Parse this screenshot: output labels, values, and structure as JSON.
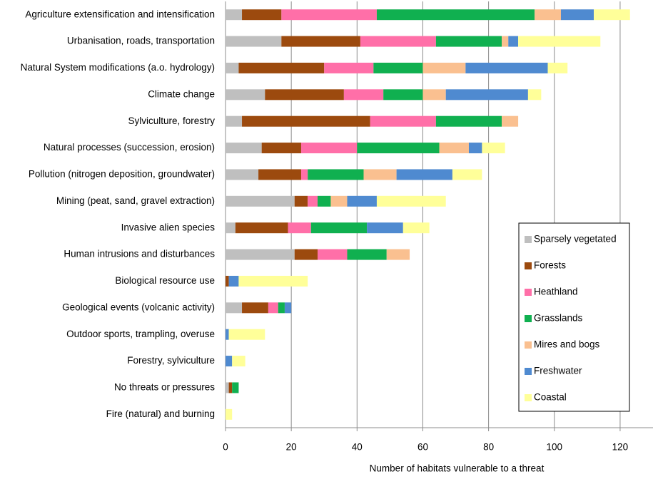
{
  "chart_data": {
    "type": "stacked-bar-horizontal",
    "x_label": "Number of habitats vulnerable to a threat",
    "categories": [
      "Agriculture extensification and intensification",
      "Urbanisation, roads, transportation",
      "Natural System modifications (a.o. hydrology)",
      "Climate change",
      "Sylviculture, forestry",
      "Natural processes (succession, erosion)",
      "Pollution (nitrogen deposition, groundwater)",
      "Mining (peat, sand, gravel extraction)",
      "Invasive alien species",
      "Human intrusions and disturbances",
      "Biological resource use",
      "Geological events (volcanic activity)",
      "Outdoor sports, trampling, overuse",
      "Forestry, sylviculture",
      "No threats or pressures",
      "Fire (natural) and burning"
    ],
    "series": [
      {
        "name": "Sparsely vegetated",
        "color": "#bfbfbf",
        "values": [
          5,
          17,
          4,
          12,
          5,
          11,
          10,
          21,
          3,
          21,
          0,
          5,
          0,
          0,
          1,
          0
        ]
      },
      {
        "name": "Forests",
        "color": "#9c4a0e",
        "values": [
          12,
          24,
          26,
          24,
          39,
          12,
          13,
          4,
          16,
          7,
          1,
          8,
          0,
          0,
          1,
          0
        ]
      },
      {
        "name": "Heathland",
        "color": "#ff6fa8",
        "values": [
          29,
          23,
          15,
          12,
          20,
          17,
          2,
          3,
          7,
          9,
          0,
          3,
          0,
          0,
          0,
          0
        ]
      },
      {
        "name": "Grasslands",
        "color": "#10b050",
        "values": [
          48,
          20,
          15,
          12,
          20,
          25,
          17,
          4,
          17,
          12,
          0,
          2,
          0,
          0,
          2,
          0
        ]
      },
      {
        "name": "Mires and bogs",
        "color": "#fac090",
        "values": [
          8,
          2,
          13,
          7,
          5,
          9,
          10,
          5,
          0,
          7,
          0,
          0,
          0,
          0,
          0,
          0
        ]
      },
      {
        "name": "Freshwater",
        "color": "#4f8ad0",
        "values": [
          10,
          3,
          25,
          25,
          0,
          4,
          17,
          9,
          11,
          0,
          3,
          2,
          1,
          2,
          0,
          0
        ]
      },
      {
        "name": "Coastal",
        "color": "#ffff99",
        "values": [
          11,
          25,
          6,
          4,
          0,
          7,
          9,
          21,
          8,
          0,
          21,
          0,
          11,
          4,
          0,
          2
        ]
      }
    ],
    "xlim": [
      0,
      130
    ],
    "xticks": [
      0,
      20,
      40,
      60,
      80,
      100,
      120
    ],
    "grid": true,
    "legend_position": "lower right"
  }
}
